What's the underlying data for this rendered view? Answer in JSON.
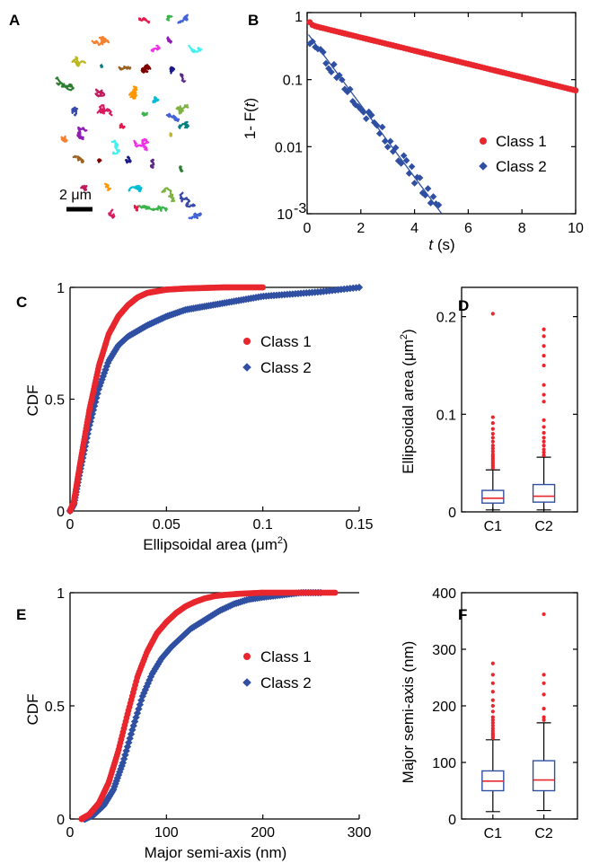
{
  "colors": {
    "class1": "#e8262d",
    "class2": "#2f4fa2",
    "box": "#2f4fa2",
    "median": "#e8262d",
    "outlier": "#e8262d",
    "text": "#000000"
  },
  "panels": {
    "A": "A",
    "B": "B",
    "C": "C",
    "D": "D",
    "E": "E",
    "F": "F"
  },
  "tracks": {
    "scale_label": "2 μm",
    "colors": [
      "#e6194b",
      "#3cb44b",
      "#4363d8",
      "#f58231",
      "#911eb4",
      "#46f0f0",
      "#f032e6",
      "#bcb823",
      "#008080",
      "#9a6324",
      "#800000",
      "#1a1a8c",
      "#5b2a86",
      "#2e7d32",
      "#c2185b",
      "#ff9800",
      "#00bcd4",
      "#7cb342",
      "#3949ab",
      "#d81b60"
    ]
  },
  "chart_data": [
    {
      "panel": "B",
      "type": "scatter",
      "yscale": "log",
      "xlabel_prefix": "t",
      "xlabel_suffix": " (s)",
      "ylabel_prefix": "1- F(",
      "ylabel_var": "t",
      "ylabel_suffix": ")",
      "xlim": [
        0,
        10
      ],
      "ylim": [
        0.001,
        1
      ],
      "xticks": [
        "0",
        "2",
        "4",
        "6",
        "8",
        "10"
      ],
      "yticks": [
        "1",
        "0.1",
        "0.01",
        "10"
      ],
      "ytick_exp": "-3",
      "legend": [
        "Class 1",
        "Class 2"
      ],
      "legend_position": "right",
      "series": [
        {
          "name": "Class 1",
          "marker": "circle",
          "tau1": 0.06,
          "amp1": 0.33,
          "tau2": 4.4,
          "amp2": 0.67,
          "x_start": 0.1,
          "x_end": 10,
          "step": 0.1
        },
        {
          "name": "Class 2",
          "marker": "diamond",
          "decay_rate": 1.24,
          "amp": 0.5,
          "x_start": 0.1,
          "x_end": 5.0,
          "step": 0.1,
          "fit_line": {
            "x_start": 0.05,
            "x_end": 5.0
          }
        }
      ]
    },
    {
      "panel": "C",
      "type": "line",
      "xlabel": "Ellipsoidal area (μm",
      "xlabel_sup": "2",
      "xlabel_end": ")",
      "ylabel": "CDF",
      "xlim": [
        0,
        0.15
      ],
      "ylim": [
        0,
        1
      ],
      "xticks": [
        "0",
        "0.05",
        "0.1",
        "0.15"
      ],
      "yticks": [
        "0",
        "0.5",
        "1"
      ],
      "legend": [
        "Class 1",
        "Class 2"
      ],
      "legend_position": "right",
      "series": [
        {
          "name": "Class 1",
          "marker": "circle",
          "x": [
            0,
            0.002,
            0.005,
            0.01,
            0.015,
            0.02,
            0.025,
            0.03,
            0.035,
            0.04,
            0.05,
            0.06,
            0.08,
            0.1
          ],
          "y": [
            0,
            0.04,
            0.2,
            0.45,
            0.65,
            0.79,
            0.87,
            0.92,
            0.955,
            0.975,
            0.99,
            0.995,
            1,
            1
          ]
        },
        {
          "name": "Class 2",
          "marker": "diamond",
          "x": [
            0,
            0.002,
            0.005,
            0.01,
            0.015,
            0.02,
            0.025,
            0.03,
            0.04,
            0.05,
            0.06,
            0.08,
            0.1,
            0.13,
            0.15
          ],
          "y": [
            0,
            0.03,
            0.17,
            0.38,
            0.55,
            0.67,
            0.74,
            0.78,
            0.83,
            0.87,
            0.9,
            0.93,
            0.96,
            0.98,
            1
          ]
        }
      ]
    },
    {
      "panel": "D",
      "type": "box",
      "ylabel": "Ellipsoidal area (μm",
      "ylabel_sup": "2",
      "ylabel_end": ")",
      "ylim": [
        0,
        0.23
      ],
      "yticks": [
        "0",
        "0.1",
        "0.2"
      ],
      "categories": [
        "C1",
        "C2"
      ],
      "boxes": [
        {
          "name": "C1",
          "min": 0.002,
          "q1": 0.009,
          "median": 0.014,
          "q3": 0.022,
          "max": 0.043,
          "outliers": [
            0.045,
            0.047,
            0.049,
            0.051,
            0.053,
            0.055,
            0.057,
            0.059,
            0.062,
            0.065,
            0.068,
            0.072,
            0.076,
            0.08,
            0.085,
            0.091,
            0.097,
            0.203
          ]
        },
        {
          "name": "C2",
          "min": 0.002,
          "q1": 0.01,
          "median": 0.016,
          "q3": 0.028,
          "max": 0.056,
          "outliers": [
            0.058,
            0.061,
            0.064,
            0.068,
            0.072,
            0.076,
            0.081,
            0.087,
            0.094,
            0.113,
            0.12,
            0.13,
            0.15,
            0.16,
            0.17,
            0.18,
            0.187
          ]
        }
      ]
    },
    {
      "panel": "E",
      "type": "line",
      "xlabel": "Major semi-axis (nm)",
      "ylabel": "CDF",
      "xlim": [
        0,
        300
      ],
      "ylim": [
        0,
        1
      ],
      "xticks": [
        "0",
        "100",
        "200",
        "300"
      ],
      "yticks": [
        "0",
        "0.5",
        "1"
      ],
      "legend": [
        "Class 1",
        "Class 2"
      ],
      "legend_position": "right",
      "series": [
        {
          "name": "Class 1",
          "marker": "circle",
          "x": [
            12,
            20,
            30,
            40,
            50,
            60,
            70,
            80,
            90,
            100,
            110,
            120,
            130,
            140,
            150,
            160,
            175,
            200,
            225,
            250,
            275
          ],
          "y": [
            0,
            0.02,
            0.07,
            0.16,
            0.3,
            0.47,
            0.63,
            0.74,
            0.82,
            0.87,
            0.91,
            0.94,
            0.96,
            0.975,
            0.985,
            0.99,
            0.995,
            1,
            1,
            1,
            1
          ]
        },
        {
          "name": "Class 2",
          "marker": "diamond",
          "x": [
            15,
            25,
            35,
            45,
            55,
            65,
            75,
            85,
            95,
            105,
            115,
            125,
            140,
            155,
            170,
            185,
            200,
            220,
            240,
            260
          ],
          "y": [
            0,
            0.02,
            0.06,
            0.13,
            0.25,
            0.4,
            0.54,
            0.64,
            0.71,
            0.76,
            0.8,
            0.84,
            0.88,
            0.92,
            0.95,
            0.97,
            0.98,
            0.99,
            1,
            1
          ]
        }
      ]
    },
    {
      "panel": "F",
      "type": "box",
      "ylabel": "Major semi-axis (nm)",
      "ylim": [
        0,
        400
      ],
      "yticks": [
        "0",
        "100",
        "200",
        "300",
        "400"
      ],
      "categories": [
        "C1",
        "C2"
      ],
      "boxes": [
        {
          "name": "C1",
          "min": 13,
          "q1": 50,
          "median": 67,
          "q3": 85,
          "max": 140,
          "outliers": [
            143,
            146,
            149,
            152,
            156,
            160,
            165,
            170,
            175,
            180,
            190,
            200,
            210,
            225,
            240,
            255,
            275
          ]
        },
        {
          "name": "C2",
          "min": 15,
          "q1": 50,
          "median": 69,
          "q3": 103,
          "max": 170,
          "outliers": [
            175,
            180,
            195,
            220,
            240,
            255,
            362
          ]
        }
      ]
    }
  ]
}
